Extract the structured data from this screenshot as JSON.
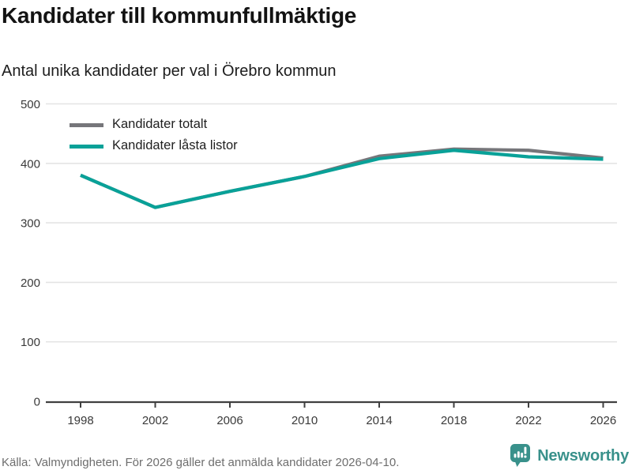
{
  "header": {
    "title": "Kandidater till kommunfullmäktige",
    "subtitle": "Antal unika kandidater per val i Örebro kommun"
  },
  "chart_data": {
    "type": "line",
    "title": "Kandidater till kommunfullmäktige",
    "subtitle": "Antal unika kandidater per val i Örebro kommun",
    "categories": [
      "1998",
      "2002",
      "2006",
      "2010",
      "2014",
      "2018",
      "2022",
      "2026"
    ],
    "series": [
      {
        "name": "Kandidater totalt",
        "color": "#76767a",
        "values": [
          380,
          326,
          353,
          378,
          412,
          424,
          422,
          409
        ]
      },
      {
        "name": "Kandidater låsta listor",
        "color": "#09a198",
        "values": [
          380,
          326,
          353,
          378,
          408,
          422,
          411,
          407
        ]
      }
    ],
    "xlabel": "",
    "ylabel": "",
    "ylim": [
      0,
      500
    ],
    "yticks": [
      0,
      100,
      200,
      300,
      400,
      500
    ],
    "grid": true,
    "legend_position": "top-left",
    "gridline_color": "#e4e4e4",
    "axis_color": "#404040"
  },
  "footer": {
    "source": "Källa: Valmyndigheten. För 2026 gäller det anmälda kandidater 2026-04-10.",
    "brand": "Newsworthy",
    "brand_color": "#39918b"
  }
}
